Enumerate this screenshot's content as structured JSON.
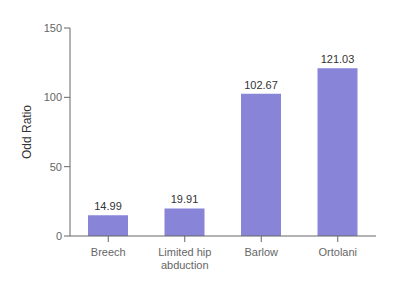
{
  "chart_data": {
    "type": "bar",
    "categories": [
      "Breech",
      "Limited hip abduction",
      "Barlow",
      "Ortolani"
    ],
    "values": [
      14.99,
      19.91,
      102.67,
      121.03
    ],
    "ylabel": "Odd Ratio",
    "ylim": [
      0,
      150
    ],
    "yticks": [
      0,
      50,
      100,
      150
    ],
    "color": "#8884d8",
    "grid": false,
    "data_labels": true
  }
}
